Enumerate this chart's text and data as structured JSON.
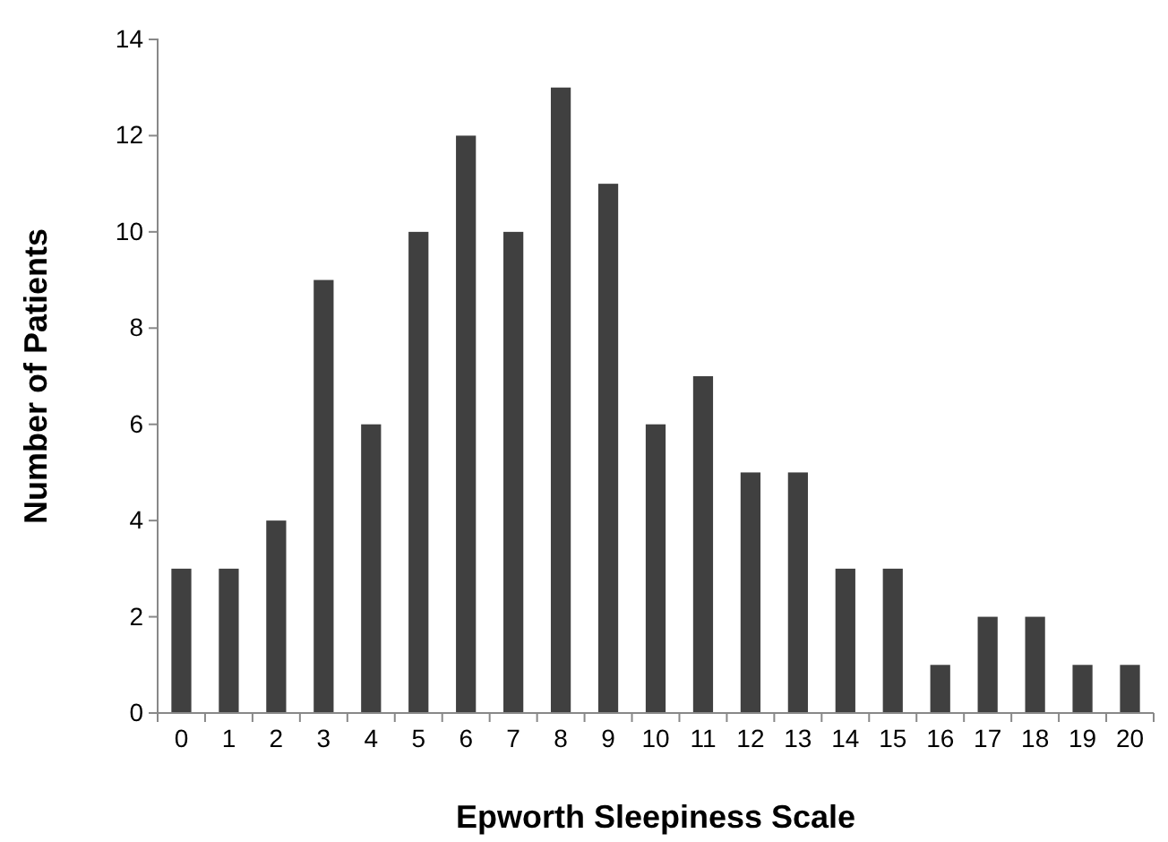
{
  "chart_data": {
    "type": "bar",
    "xlabel": "Epworth Sleepiness Scale",
    "ylabel": "Number of Patients",
    "categories": [
      "0",
      "1",
      "2",
      "3",
      "4",
      "5",
      "6",
      "7",
      "8",
      "9",
      "10",
      "11",
      "12",
      "13",
      "14",
      "15",
      "16",
      "17",
      "18",
      "19",
      "20"
    ],
    "values": [
      3,
      3,
      4,
      9,
      6,
      10,
      12,
      10,
      13,
      11,
      6,
      7,
      5,
      5,
      3,
      3,
      1,
      2,
      2,
      1,
      1
    ],
    "color": "#404040",
    "ylim": [
      0,
      14
    ],
    "yticks": [
      0,
      2,
      4,
      6,
      8,
      10,
      12,
      14
    ],
    "grid": false
  }
}
